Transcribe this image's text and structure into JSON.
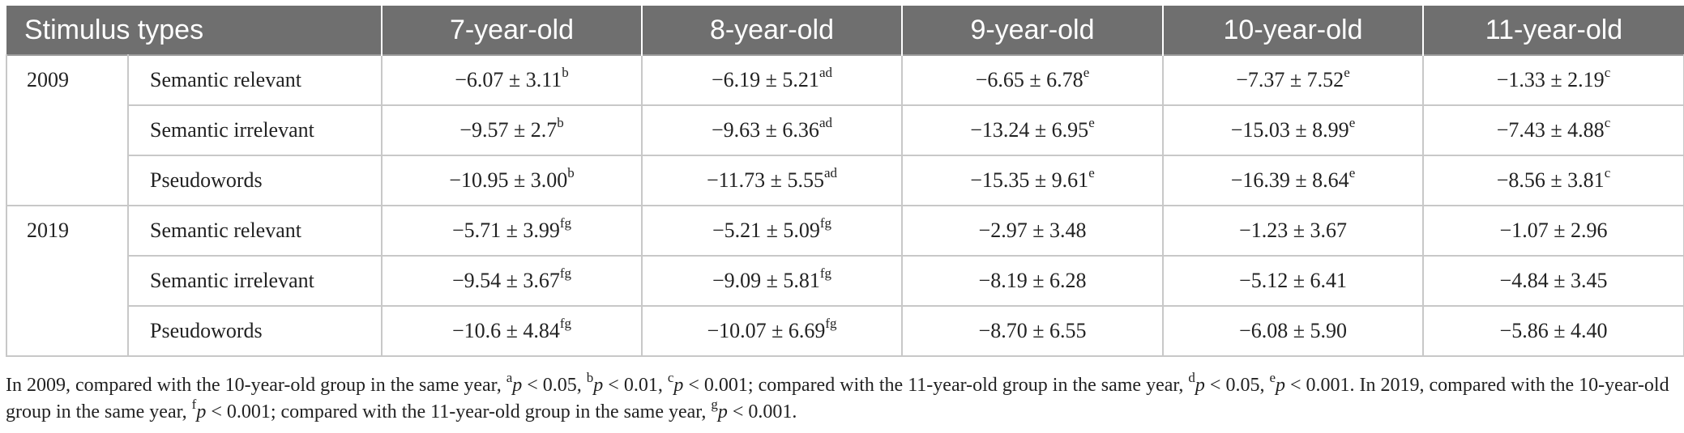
{
  "table": {
    "header": {
      "stimulus_label": "Stimulus types",
      "groups": [
        "7-year-old",
        "8-year-old",
        "9-year-old",
        "10-year-old",
        "11-year-old"
      ]
    },
    "sections": [
      {
        "year": "2009",
        "rows": [
          {
            "type": "Semantic relevant",
            "cells": [
              {
                "value": "−6.07 ± 3.11",
                "sup": "b"
              },
              {
                "value": "−6.19 ± 5.21",
                "sup": "ad"
              },
              {
                "value": "−6.65 ± 6.78",
                "sup": "e"
              },
              {
                "value": "−7.37 ± 7.52",
                "sup": "e"
              },
              {
                "value": "−1.33 ± 2.19",
                "sup": "c"
              }
            ]
          },
          {
            "type": "Semantic irrelevant",
            "cells": [
              {
                "value": "−9.57 ± 2.7",
                "sup": "b"
              },
              {
                "value": "−9.63 ± 6.36",
                "sup": "ad"
              },
              {
                "value": "−13.24 ± 6.95",
                "sup": "e"
              },
              {
                "value": "−15.03 ± 8.99",
                "sup": "e"
              },
              {
                "value": "−7.43 ± 4.88",
                "sup": "c"
              }
            ]
          },
          {
            "type": "Pseudowords",
            "cells": [
              {
                "value": "−10.95 ± 3.00",
                "sup": "b"
              },
              {
                "value": "−11.73 ± 5.55",
                "sup": "ad"
              },
              {
                "value": "−15.35 ± 9.61",
                "sup": "e"
              },
              {
                "value": "−16.39 ± 8.64",
                "sup": "e"
              },
              {
                "value": "−8.56 ± 3.81",
                "sup": "c"
              }
            ]
          }
        ]
      },
      {
        "year": "2019",
        "rows": [
          {
            "type": "Semantic relevant",
            "cells": [
              {
                "value": "−5.71 ± 3.99",
                "sup": "fg"
              },
              {
                "value": "−5.21 ± 5.09",
                "sup": "fg"
              },
              {
                "value": "−2.97 ± 3.48",
                "sup": ""
              },
              {
                "value": "−1.23 ± 3.67",
                "sup": ""
              },
              {
                "value": "−1.07 ± 2.96",
                "sup": ""
              }
            ]
          },
          {
            "type": "Semantic irrelevant",
            "cells": [
              {
                "value": "−9.54 ± 3.67",
                "sup": "fg"
              },
              {
                "value": "−9.09 ± 5.81",
                "sup": "fg"
              },
              {
                "value": "−8.19 ± 6.28",
                "sup": ""
              },
              {
                "value": "−5.12 ± 6.41",
                "sup": ""
              },
              {
                "value": "−4.84 ± 3.45",
                "sup": ""
              }
            ]
          },
          {
            "type": "Pseudowords",
            "cells": [
              {
                "value": "−10.6 ± 4.84",
                "sup": "fg"
              },
              {
                "value": "−10.07 ± 6.69",
                "sup": "fg"
              },
              {
                "value": "−8.70 ± 6.55",
                "sup": ""
              },
              {
                "value": "−6.08 ± 5.90",
                "sup": ""
              },
              {
                "value": "−5.86 ± 4.40",
                "sup": ""
              }
            ]
          }
        ]
      }
    ]
  },
  "footnote": {
    "t1": "In 2009, compared with the 10-year-old group in the same year, ",
    "a_sup": "a",
    "a_text": " < 0.05, ",
    "b_sup": "b",
    "b_text": " < 0.01, ",
    "c_sup": "c",
    "c_text": " < 0.001; compared with the 11-year-old group in the same year, ",
    "d_sup": "d",
    "d_text": " < 0.05, ",
    "e_sup": "e",
    "e_text": " < 0.001. In 2019, compared with the 10-year-old group in the same year, ",
    "f_sup": "f",
    "f_text": " < 0.001; compared with the 11-year-old group in the same year, ",
    "g_sup": "g",
    "g_text": " < 0.001.",
    "p_symbol": "p"
  },
  "colors": {
    "header_bg": "#6f6f6f",
    "header_text": "#ffffff",
    "border": "#c8c8c8",
    "text": "#222222"
  }
}
